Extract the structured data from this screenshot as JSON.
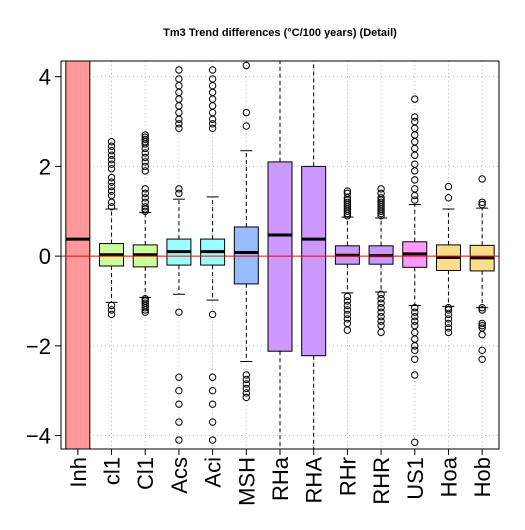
{
  "chart_data": {
    "type": "boxplot",
    "title": "Tm3 Trend differences (°C/100 years) (Detail)",
    "xlabel": "",
    "ylabel": "",
    "ylim": [
      -4.3,
      4.35
    ],
    "yticks": [
      -4,
      -2,
      0,
      2,
      4
    ],
    "ytick_labels": [
      "−4",
      "−2",
      "0",
      "2",
      "4"
    ],
    "grid": true,
    "reference_line": {
      "y": 0,
      "color": "#ff0000"
    },
    "categories": [
      "Inh",
      "cl1",
      "Cl1",
      "Acs",
      "Aci",
      "MSH",
      "RHa",
      "RHA",
      "RHr",
      "RHR",
      "US1",
      "Hoa",
      "Hob"
    ],
    "boxes": [
      {
        "name": "Inh",
        "color": "#ff9999",
        "q1": -4.3,
        "median": 0.38,
        "q3": 4.35,
        "whisker_low": null,
        "whisker_high": null,
        "outliers": []
      },
      {
        "name": "cl1",
        "color": "#ccff99",
        "q1": -0.22,
        "median": 0.03,
        "q3": 0.28,
        "whisker_low": -1.03,
        "whisker_high": 1.05,
        "outliers": [
          -1.3,
          -1.2,
          -1.1,
          1.1,
          1.2,
          1.35,
          1.45,
          1.55,
          1.65,
          1.75,
          1.95,
          2.05,
          2.15,
          2.25,
          2.35,
          2.45,
          2.55
        ]
      },
      {
        "name": "Cl1",
        "color": "#ccff99",
        "q1": -0.24,
        "median": 0.03,
        "q3": 0.25,
        "whisker_low": -0.92,
        "whisker_high": 0.97,
        "outliers": [
          -1.25,
          -1.2,
          -1.15,
          -1.1,
          -1.05,
          -1.0,
          -0.95,
          1.0,
          1.05,
          1.1,
          1.2,
          1.3,
          1.4,
          1.5,
          1.9,
          2.0,
          2.1,
          2.2,
          2.3,
          2.4,
          2.5,
          2.55,
          2.6,
          2.65,
          2.7
        ]
      },
      {
        "name": "Acs",
        "color": "#99ffff",
        "q1": -0.2,
        "median": 0.1,
        "q3": 0.38,
        "whisker_low": -0.85,
        "whisker_high": 1.27,
        "outliers": [
          -4.1,
          -3.7,
          -3.3,
          -3.0,
          -2.7,
          -1.25,
          1.4,
          1.5,
          2.85,
          2.95,
          3.05,
          3.2,
          3.35,
          3.5,
          3.65,
          3.8,
          3.95,
          4.15
        ]
      },
      {
        "name": "Aci",
        "color": "#99ffff",
        "q1": -0.2,
        "median": 0.1,
        "q3": 0.38,
        "whisker_low": -0.98,
        "whisker_high": 1.32,
        "outliers": [
          -4.1,
          -3.7,
          -3.3,
          -3.0,
          -2.7,
          -1.3,
          2.85,
          2.95,
          3.05,
          3.2,
          3.35,
          3.5,
          3.65,
          3.8,
          3.95,
          4.15
        ]
      },
      {
        "name": "MSH",
        "color": "#99bbff",
        "q1": -0.62,
        "median": 0.08,
        "q3": 0.65,
        "whisker_low": -2.35,
        "whisker_high": 2.35,
        "outliers": [
          -3.15,
          -3.05,
          -2.95,
          -2.85,
          -2.75,
          -2.65,
          2.9,
          3.2,
          4.25
        ]
      },
      {
        "name": "RHa",
        "color": "#cc99ff",
        "q1": -2.12,
        "median": 0.47,
        "q3": 2.1,
        "whisker_low": null,
        "whisker_high": null,
        "outliers": []
      },
      {
        "name": "RHA",
        "color": "#cc99ff",
        "q1": -2.22,
        "median": 0.38,
        "q3": 2.0,
        "whisker_low": null,
        "whisker_high": null,
        "outliers": []
      },
      {
        "name": "RHr",
        "color": "#cc99ff",
        "q1": -0.18,
        "median": 0.02,
        "q3": 0.23,
        "whisker_low": -0.82,
        "whisker_high": 0.87,
        "outliers": [
          -1.65,
          -1.5,
          -1.4,
          -1.3,
          -1.2,
          -1.1,
          -1.0,
          -0.9,
          0.9,
          0.95,
          1.0,
          1.05,
          1.1,
          1.15,
          1.2,
          1.25,
          1.3,
          1.4,
          1.45
        ]
      },
      {
        "name": "RHR",
        "color": "#cc99ff",
        "q1": -0.18,
        "median": 0.01,
        "q3": 0.23,
        "whisker_low": -0.8,
        "whisker_high": 0.85,
        "outliers": [
          -1.7,
          -1.55,
          -1.45,
          -1.35,
          -1.25,
          -1.15,
          -1.05,
          -0.95,
          -0.85,
          0.9,
          0.95,
          1.0,
          1.05,
          1.1,
          1.15,
          1.2,
          1.25,
          1.3,
          1.4,
          1.5
        ]
      },
      {
        "name": "US1",
        "color": "#ff99ff",
        "q1": -0.25,
        "median": 0.05,
        "q3": 0.32,
        "whisker_low": -1.1,
        "whisker_high": 1.15,
        "outliers": [
          -4.15,
          -2.65,
          -2.3,
          -2.1,
          -2.0,
          -1.85,
          -1.7,
          -1.55,
          -1.45,
          -1.35,
          -1.25,
          -1.15,
          1.25,
          1.35,
          1.5,
          1.7,
          1.9,
          2.05,
          2.25,
          2.4,
          2.55,
          2.7,
          2.85,
          3.0,
          3.1,
          3.5
        ]
      },
      {
        "name": "Hoa",
        "color": "#ffdd88",
        "q1": -0.32,
        "median": -0.03,
        "q3": 0.25,
        "whisker_low": -1.12,
        "whisker_high": 1.05,
        "outliers": [
          -1.7,
          -1.6,
          -1.5,
          -1.4,
          -1.3,
          -1.2,
          -1.15,
          1.3,
          1.55
        ]
      },
      {
        "name": "Hob",
        "color": "#ffdd88",
        "q1": -0.33,
        "median": -0.04,
        "q3": 0.24,
        "whisker_low": -1.15,
        "whisker_high": 1.07,
        "outliers": [
          -2.3,
          -2.1,
          -1.75,
          -1.6,
          -1.55,
          -1.5,
          -1.2,
          -1.15,
          1.15,
          1.2,
          1.72
        ]
      }
    ]
  }
}
